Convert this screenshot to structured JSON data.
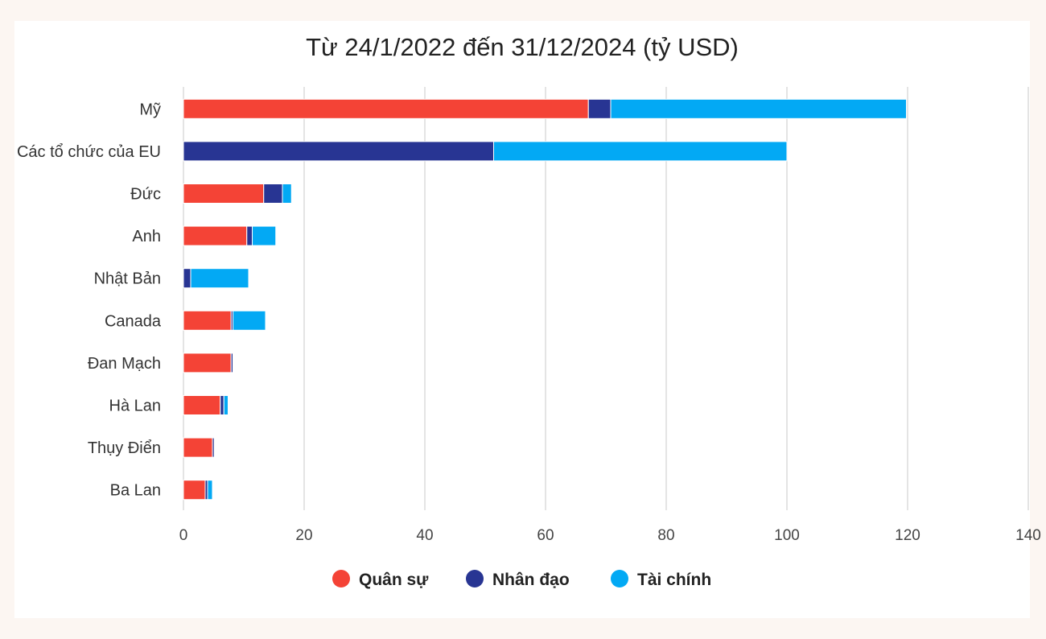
{
  "chart_data": {
    "type": "bar",
    "orientation": "horizontal",
    "stacked": true,
    "title": "Từ 24/1/2022 đến 31/12/2024 (tỷ USD)",
    "xlabel": "",
    "ylabel": "",
    "xlim": [
      0,
      140
    ],
    "x_ticks": [
      "0",
      "20",
      "40",
      "60",
      "80",
      "100",
      "120",
      "140"
    ],
    "grid": true,
    "legend_position": "bottom",
    "categories": [
      "Mỹ",
      "Các tổ chức của EU",
      "Đức",
      "Anh",
      "Nhật Bản",
      "Canada",
      "Đan Mạch",
      "Hà Lan",
      "Thụy Điển",
      "Ba Lan"
    ],
    "series": [
      {
        "name": "Quân sự",
        "color": "#f44336",
        "values": [
          67.1,
          0,
          13.3,
          10.5,
          0,
          7.9,
          7.9,
          6.1,
          4.8,
          3.6
        ]
      },
      {
        "name": "Nhân đạo",
        "color": "#283593",
        "values": [
          3.7,
          51.4,
          3.1,
          0.9,
          1.2,
          0.3,
          0.3,
          0.6,
          0.3,
          0.4
        ]
      },
      {
        "name": "Tài chính",
        "color": "#03a9f4",
        "values": [
          49.0,
          48.6,
          1.5,
          3.9,
          9.6,
          5.4,
          0,
          0.7,
          0,
          0.8
        ]
      }
    ]
  }
}
